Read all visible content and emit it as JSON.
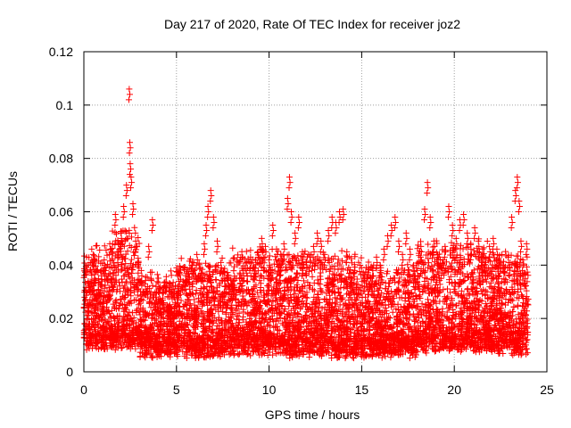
{
  "chart_data": {
    "type": "scatter",
    "title": "Day 217 of 2020, Rate Of TEC Index for receiver joz2",
    "xlabel": "GPS time / hours",
    "ylabel": "ROTI / TECUs",
    "xlim": [
      0,
      25
    ],
    "ylim": [
      0,
      0.12
    ],
    "x_ticks": [
      "0",
      "5",
      "10",
      "15",
      "20",
      "25"
    ],
    "y_ticks": [
      "0",
      "0.02",
      "0.04",
      "0.06",
      "0.08",
      "0.1",
      "0.12"
    ],
    "grid": true,
    "marker": "plus",
    "color": "#ff0000",
    "series": [
      {
        "points": [
          [
            0.05,
            0.018
          ],
          [
            0.2,
            0.025
          ],
          [
            0.35,
            0.031
          ],
          [
            0.5,
            0.044
          ],
          [
            0.65,
            0.027
          ],
          [
            0.8,
            0.021
          ],
          [
            0.95,
            0.036
          ],
          [
            1.1,
            0.042
          ],
          [
            1.25,
            0.03
          ],
          [
            1.4,
            0.048
          ],
          [
            1.55,
            0.039
          ],
          [
            1.7,
            0.059
          ],
          [
            1.85,
            0.045
          ],
          [
            2.0,
            0.052
          ],
          [
            2.15,
            0.062
          ],
          [
            2.3,
            0.07
          ],
          [
            2.45,
            0.106
          ],
          [
            2.48,
            0.086
          ],
          [
            2.5,
            0.078
          ],
          [
            2.55,
            0.073
          ],
          [
            2.65,
            0.063
          ],
          [
            2.8,
            0.049
          ],
          [
            2.95,
            0.041
          ],
          [
            3.1,
            0.038
          ],
          [
            3.3,
            0.033
          ],
          [
            3.5,
            0.047
          ],
          [
            3.7,
            0.057
          ],
          [
            3.9,
            0.032
          ],
          [
            4.1,
            0.026
          ],
          [
            4.3,
            0.02
          ],
          [
            4.5,
            0.016
          ],
          [
            4.7,
            0.024
          ],
          [
            4.9,
            0.028
          ],
          [
            5.1,
            0.032
          ],
          [
            5.3,
            0.022
          ],
          [
            5.5,
            0.036
          ],
          [
            5.7,
            0.031
          ],
          [
            5.9,
            0.037
          ],
          [
            6.1,
            0.044
          ],
          [
            6.3,
            0.039
          ],
          [
            6.5,
            0.048
          ],
          [
            6.6,
            0.055
          ],
          [
            6.7,
            0.062
          ],
          [
            6.85,
            0.068
          ],
          [
            7.0,
            0.058
          ],
          [
            7.2,
            0.049
          ],
          [
            7.4,
            0.041
          ],
          [
            7.6,
            0.034
          ],
          [
            7.8,
            0.029
          ],
          [
            8.0,
            0.033
          ],
          [
            8.2,
            0.027
          ],
          [
            8.4,
            0.035
          ],
          [
            8.6,
            0.038
          ],
          [
            8.8,
            0.041
          ],
          [
            9.0,
            0.043
          ],
          [
            9.2,
            0.039
          ],
          [
            9.4,
            0.045
          ],
          [
            9.6,
            0.05
          ],
          [
            9.8,
            0.047
          ],
          [
            10.0,
            0.042
          ],
          [
            10.2,
            0.055
          ],
          [
            10.4,
            0.046
          ],
          [
            10.6,
            0.04
          ],
          [
            10.8,
            0.048
          ],
          [
            11.0,
            0.065
          ],
          [
            11.1,
            0.073
          ],
          [
            11.2,
            0.06
          ],
          [
            11.4,
            0.052
          ],
          [
            11.6,
            0.058
          ],
          [
            11.8,
            0.045
          ],
          [
            12.0,
            0.041
          ],
          [
            12.2,
            0.043
          ],
          [
            12.4,
            0.047
          ],
          [
            12.6,
            0.052
          ],
          [
            12.8,
            0.049
          ],
          [
            13.0,
            0.044
          ],
          [
            13.2,
            0.053
          ],
          [
            13.4,
            0.058
          ],
          [
            13.6,
            0.056
          ],
          [
            13.8,
            0.06
          ],
          [
            14.0,
            0.061
          ],
          [
            14.2,
            0.045
          ],
          [
            14.4,
            0.037
          ],
          [
            14.6,
            0.029
          ],
          [
            14.8,
            0.025
          ],
          [
            15.0,
            0.022
          ],
          [
            15.2,
            0.028
          ],
          [
            15.4,
            0.033
          ],
          [
            15.6,
            0.038
          ],
          [
            15.8,
            0.043
          ],
          [
            16.0,
            0.04
          ],
          [
            16.2,
            0.046
          ],
          [
            16.4,
            0.051
          ],
          [
            16.6,
            0.055
          ],
          [
            16.8,
            0.058
          ],
          [
            17.0,
            0.049
          ],
          [
            17.2,
            0.044
          ],
          [
            17.4,
            0.052
          ],
          [
            17.6,
            0.046
          ],
          [
            17.8,
            0.04
          ],
          [
            18.0,
            0.038
          ],
          [
            18.2,
            0.047
          ],
          [
            18.4,
            0.061
          ],
          [
            18.55,
            0.071
          ],
          [
            18.7,
            0.058
          ],
          [
            18.9,
            0.049
          ],
          [
            19.1,
            0.044
          ],
          [
            19.3,
            0.039
          ],
          [
            19.5,
            0.047
          ],
          [
            19.7,
            0.062
          ],
          [
            19.9,
            0.055
          ],
          [
            20.1,
            0.05
          ],
          [
            20.3,
            0.057
          ],
          [
            20.5,
            0.059
          ],
          [
            20.7,
            0.052
          ],
          [
            20.9,
            0.046
          ],
          [
            21.1,
            0.054
          ],
          [
            21.3,
            0.049
          ],
          [
            21.5,
            0.043
          ],
          [
            21.7,
            0.041
          ],
          [
            21.9,
            0.047
          ],
          [
            22.1,
            0.05
          ],
          [
            22.3,
            0.046
          ],
          [
            22.5,
            0.041
          ],
          [
            22.7,
            0.039
          ],
          [
            22.9,
            0.043
          ],
          [
            23.1,
            0.058
          ],
          [
            23.3,
            0.068
          ],
          [
            23.4,
            0.073
          ],
          [
            23.5,
            0.064
          ],
          [
            23.6,
            0.049
          ],
          [
            23.7,
            0.042
          ],
          [
            23.8,
            0.037
          ],
          [
            23.9,
            0.048
          ]
        ]
      }
    ],
    "note_density": [
      [
        0,
        1.5,
        0.008,
        0.042
      ],
      [
        1.5,
        3.0,
        0.008,
        0.05
      ],
      [
        3.0,
        5.0,
        0.005,
        0.032
      ],
      [
        5.0,
        8.0,
        0.005,
        0.038
      ],
      [
        8.0,
        11.0,
        0.006,
        0.042
      ],
      [
        11.0,
        15.0,
        0.005,
        0.04
      ],
      [
        15.0,
        18.0,
        0.005,
        0.036
      ],
      [
        18.0,
        22.0,
        0.007,
        0.044
      ],
      [
        22.0,
        24.0,
        0.006,
        0.04
      ]
    ]
  }
}
